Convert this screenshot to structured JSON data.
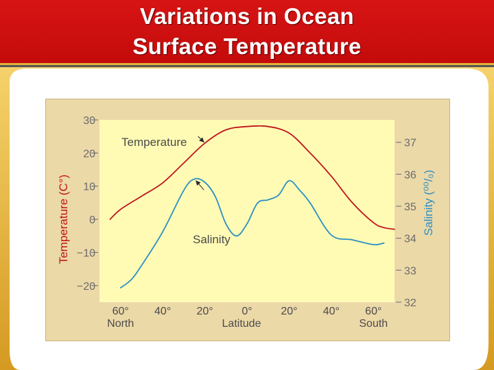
{
  "slide": {
    "title_line_1": "Variations in Ocean",
    "title_line_2": "Surface Temperature"
  },
  "colors": {
    "title_bar": "#d11212",
    "plot_background": "#fffbb5",
    "card_background": "#ecd9a8",
    "temperature_line": "#c0141b",
    "salinity_line": "#2b8fc4",
    "temperature_axis_text": "#c0141b",
    "salinity_axis_text": "#2b8fc4"
  },
  "chart_data": {
    "type": "line",
    "title": "",
    "xlabel": "Latitude",
    "x_ticks": [
      {
        "value": -60,
        "label": "60°"
      },
      {
        "value": -40,
        "label": "40°"
      },
      {
        "value": -20,
        "label": "20°"
      },
      {
        "value": 0,
        "label": "0°"
      },
      {
        "value": 20,
        "label": "20°"
      },
      {
        "value": 40,
        "label": "40°"
      },
      {
        "value": 60,
        "label": "60°"
      }
    ],
    "x_range": [
      -70,
      70
    ],
    "hemisphere_labels": [
      "North",
      "South"
    ],
    "left_axis": {
      "label": "Temperature (C°)",
      "ylim": [
        -25,
        30
      ],
      "ticks": [
        {
          "value": 30,
          "label": "30"
        },
        {
          "value": 20,
          "label": "20"
        },
        {
          "value": 10,
          "label": "10"
        },
        {
          "value": 0,
          "label": "0"
        },
        {
          "value": -10,
          "label": "−10"
        },
        {
          "value": -20,
          "label": "−20"
        }
      ]
    },
    "right_axis": {
      "label": "Salinity (⁰⁰/₀)",
      "ylim": [
        32,
        37.7
      ],
      "ticks": [
        {
          "value": 37,
          "label": "37"
        },
        {
          "value": 36,
          "label": "36"
        },
        {
          "value": 35,
          "label": "35"
        },
        {
          "value": 34,
          "label": "34"
        },
        {
          "value": 33,
          "label": "33"
        },
        {
          "value": 32,
          "label": "32"
        }
      ]
    },
    "series": [
      {
        "name": "Temperature",
        "axis": "left",
        "x": [
          -65,
          -60,
          -50,
          -40,
          -30,
          -20,
          -10,
          0,
          10,
          20,
          30,
          40,
          50,
          60,
          65,
          70
        ],
        "y": [
          0,
          3,
          7,
          11,
          17,
          23,
          27,
          28,
          28,
          26,
          20,
          13,
          5,
          -1,
          -2.5,
          -3
        ]
      },
      {
        "name": "Salinity",
        "axis": "right",
        "x": [
          -60,
          -55,
          -50,
          -40,
          -30,
          -25,
          -20,
          -15,
          -10,
          -5,
          0,
          5,
          10,
          15,
          20,
          25,
          30,
          40,
          50,
          60,
          65
        ],
        "y": [
          32.45,
          32.7,
          33.15,
          34.2,
          35.5,
          35.85,
          35.75,
          35.3,
          34.45,
          34.07,
          34.45,
          35.1,
          35.2,
          35.35,
          35.8,
          35.5,
          35.1,
          34.1,
          33.95,
          33.8,
          33.85
        ]
      }
    ],
    "annotations": [
      {
        "text": "Temperature",
        "series": "Temperature",
        "points_to_x": -20
      },
      {
        "text": "Salinity",
        "series": "Salinity",
        "points_to_x": -25
      }
    ]
  }
}
